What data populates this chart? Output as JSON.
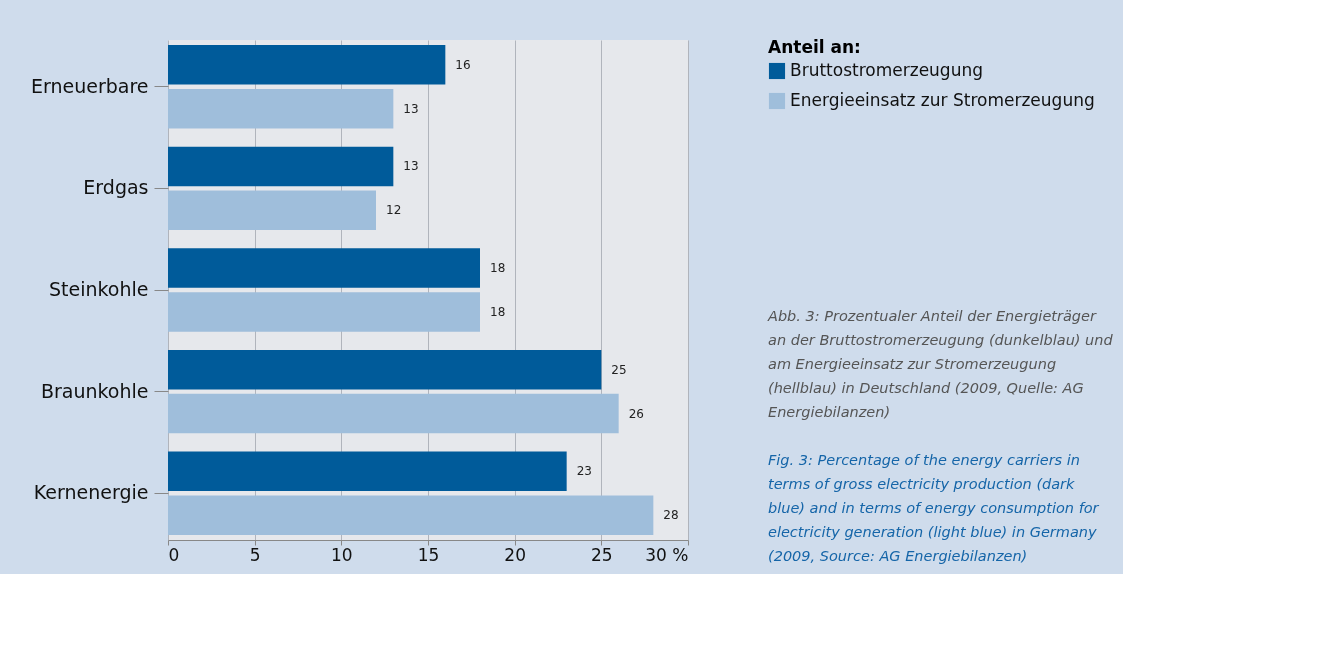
{
  "chart_data": {
    "type": "bar",
    "orientation": "horizontal",
    "categories": [
      "Erneuerbare",
      "Erdgas",
      "Steinkohle",
      "Braunkohle",
      "Kernenergie"
    ],
    "series": [
      {
        "name": "Bruttostromerzeugung",
        "color": "#005b9a",
        "values": [
          16,
          13,
          18,
          25,
          23
        ]
      },
      {
        "name": "Energieeinsatz zur Stromerzeugung",
        "color": "#9fbedb",
        "values": [
          13,
          12,
          18,
          26,
          28
        ]
      }
    ],
    "xlim": [
      0,
      30
    ],
    "xticks": [
      0,
      5,
      10,
      15,
      20,
      25,
      {
        "value": 30,
        "label": "30 %"
      }
    ],
    "grid": "x",
    "legend": "top right",
    "legend_title": "Anteil an:",
    "data_labels": true,
    "annotations": [
      "Abb. 3: Prozentualer Anteil der Energieträger an der Bruttostromerzeugung (dunkelblau) und am Energieeinsatz zur Stromerzeugung (hellblau) in Deutschland (2009, Quelle: AG Energiebilanzen)",
      "Fig. 3: Percentage of the energy carriers in terms of gross electricity production (dark blue) and in terms of energy consumption for electricity generation (light blue) in Germany (2009, Source: AG Energiebilanzen)"
    ]
  }
}
